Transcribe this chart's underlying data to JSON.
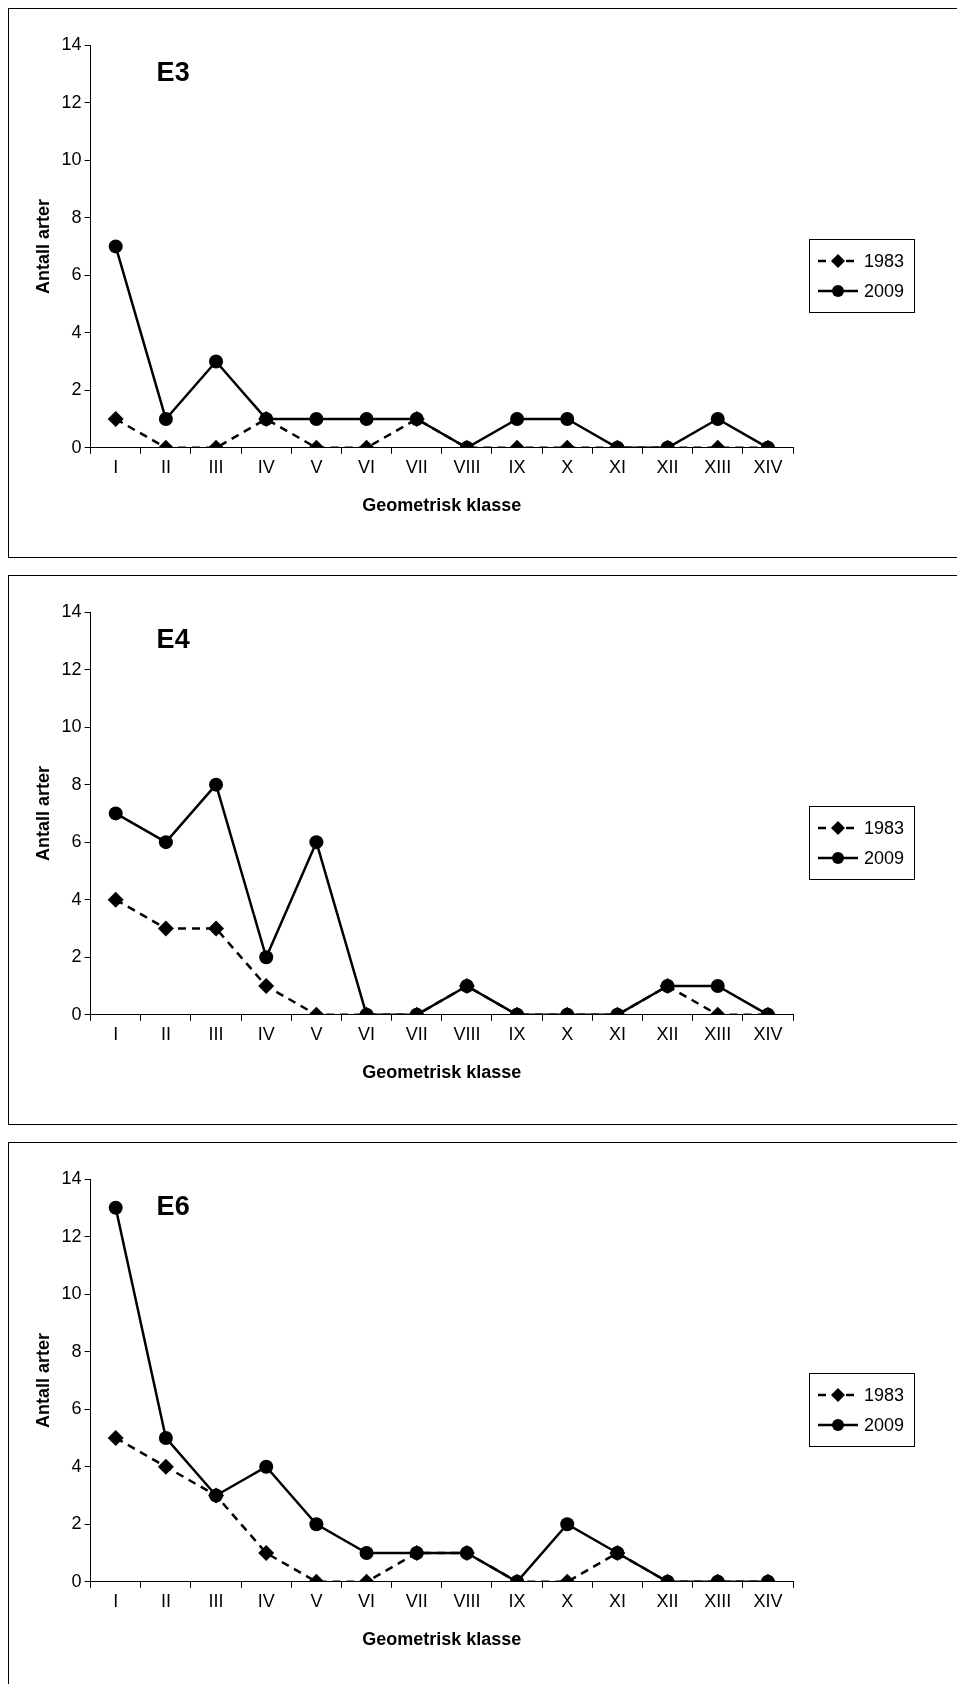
{
  "chart_data": [
    {
      "type": "line",
      "title": "E3",
      "xlabel": "Geometrisk klasse",
      "ylabel": "Antall arter",
      "categories": [
        "I",
        "II",
        "III",
        "IV",
        "V",
        "VI",
        "VII",
        "VIII",
        "IX",
        "X",
        "XI",
        "XII",
        "XIII",
        "XIV"
      ],
      "ylim": [
        0,
        14
      ],
      "yticks": [
        0,
        2,
        4,
        6,
        8,
        10,
        12,
        14
      ],
      "legend": "right",
      "series": [
        {
          "name": "1983",
          "color": "#000000",
          "marker": "diamond",
          "line_style": "dashed",
          "values": [
            1,
            0,
            0,
            1,
            0,
            0,
            1,
            0,
            0,
            0,
            0,
            0,
            0,
            0
          ]
        },
        {
          "name": "2009",
          "color": "#000000",
          "marker": "circle",
          "line_style": "solid",
          "values": [
            7,
            1,
            3,
            1,
            1,
            1,
            1,
            0,
            1,
            1,
            0,
            0,
            1,
            0
          ]
        }
      ]
    },
    {
      "type": "line",
      "title": "E4",
      "xlabel": "Geometrisk klasse",
      "ylabel": "Antall arter",
      "categories": [
        "I",
        "II",
        "III",
        "IV",
        "V",
        "VI",
        "VII",
        "VIII",
        "IX",
        "X",
        "XI",
        "XII",
        "XIII",
        "XIV"
      ],
      "ylim": [
        0,
        14
      ],
      "yticks": [
        0,
        2,
        4,
        6,
        8,
        10,
        12,
        14
      ],
      "legend": "right",
      "series": [
        {
          "name": "1983",
          "color": "#000000",
          "marker": "diamond",
          "line_style": "dashed",
          "values": [
            4,
            3,
            3,
            1,
            0,
            0,
            0,
            1,
            0,
            0,
            0,
            1,
            0,
            0
          ]
        },
        {
          "name": "2009",
          "color": "#000000",
          "marker": "circle",
          "line_style": "solid",
          "values": [
            7,
            6,
            8,
            2,
            6,
            0,
            0,
            1,
            0,
            0,
            0,
            1,
            1,
            0
          ]
        }
      ]
    },
    {
      "type": "line",
      "title": "E6",
      "xlabel": "Geometrisk klasse",
      "ylabel": "Antall arter",
      "categories": [
        "I",
        "II",
        "III",
        "IV",
        "V",
        "VI",
        "VII",
        "VIII",
        "IX",
        "X",
        "XI",
        "XII",
        "XIII",
        "XIV"
      ],
      "ylim": [
        0,
        14
      ],
      "yticks": [
        0,
        2,
        4,
        6,
        8,
        10,
        12,
        14
      ],
      "legend": "right",
      "series": [
        {
          "name": "1983",
          "color": "#000000",
          "marker": "diamond",
          "line_style": "dashed",
          "values": [
            5,
            4,
            3,
            1,
            0,
            0,
            1,
            1,
            0,
            0,
            1,
            0,
            0,
            0
          ]
        },
        {
          "name": "2009",
          "color": "#000000",
          "marker": "circle",
          "line_style": "solid",
          "values": [
            13,
            5,
            3,
            4,
            2,
            1,
            1,
            1,
            0,
            2,
            1,
            0,
            0,
            0
          ]
        }
      ]
    }
  ]
}
